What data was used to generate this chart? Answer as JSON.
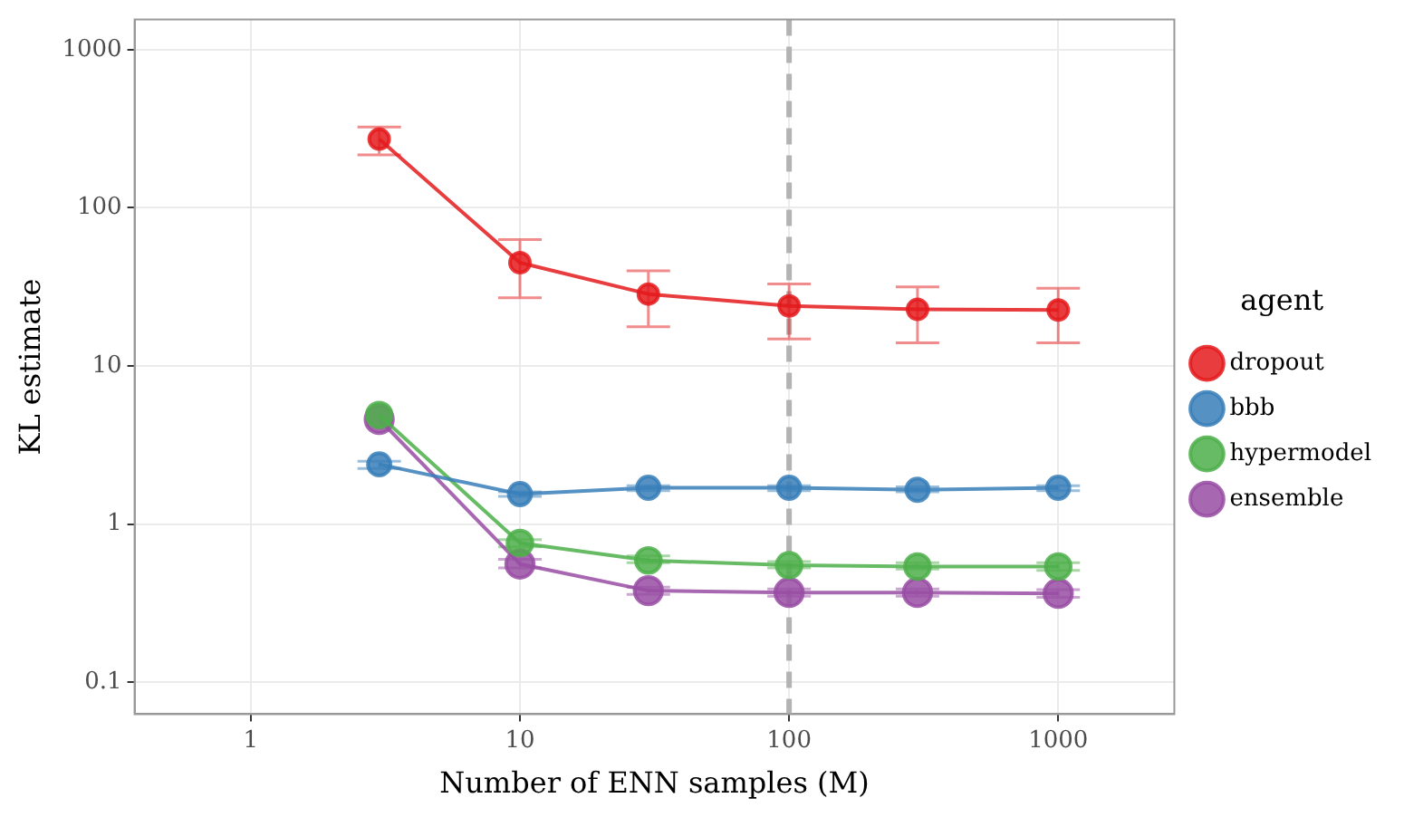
{
  "chart_data": {
    "type": "line",
    "xlabel": "Number of ENN samples (M)",
    "ylabel": "KL estimate",
    "legend_title": "agent",
    "x": [
      3,
      10,
      30,
      100,
      300,
      1000
    ],
    "series": [
      {
        "name": "dropout",
        "color": "#e41a1c",
        "values": [
          272,
          45,
          28.5,
          24,
          22.8,
          22.6
        ],
        "errors": [
          [
            216,
            324
          ],
          [
            27,
            63
          ],
          [
            17.7,
            40
          ],
          [
            14.8,
            33
          ],
          [
            14,
            31.6
          ],
          [
            14,
            31
          ]
        ]
      },
      {
        "name": "bbb",
        "color": "#377eb8",
        "values": [
          2.39,
          1.55,
          1.7,
          1.7,
          1.65,
          1.7
        ],
        "errors": [
          [
            2.25,
            2.5
          ],
          [
            1.5,
            1.6
          ],
          [
            1.63,
            1.75
          ],
          [
            1.63,
            1.75
          ],
          [
            1.6,
            1.72
          ],
          [
            1.63,
            1.75
          ]
        ]
      },
      {
        "name": "hypermodel",
        "color": "#4daf4a",
        "values": [
          4.9,
          0.76,
          0.59,
          0.55,
          0.54,
          0.54
        ],
        "errors": [
          null,
          [
            0.72,
            0.8
          ],
          [
            0.57,
            0.63
          ],
          [
            0.53,
            0.58
          ],
          [
            0.52,
            0.57
          ],
          [
            0.51,
            0.57
          ]
        ]
      },
      {
        "name": "ensemble",
        "color": "#984ea3",
        "values": [
          4.6,
          0.56,
          0.38,
          0.37,
          0.37,
          0.365
        ],
        "errors": [
          null,
          [
            0.53,
            0.6
          ],
          [
            0.36,
            0.4
          ],
          [
            0.35,
            0.39
          ],
          [
            0.35,
            0.39
          ],
          [
            0.345,
            0.385
          ]
        ]
      }
    ],
    "log": "xy",
    "xlim": [
      0.37,
      2700
    ],
    "ylim": [
      0.063,
      1550
    ],
    "xticks": [
      1,
      10,
      100,
      1000
    ],
    "yticks": [
      0.1,
      1,
      10,
      100,
      1000
    ],
    "ref_lines": [
      {
        "axis": "x",
        "value": 100,
        "color": "#b3b3b3",
        "line_style": "dashed"
      }
    ],
    "grid": true,
    "legend": "right",
    "marker": "circle",
    "line_style": "solid"
  }
}
